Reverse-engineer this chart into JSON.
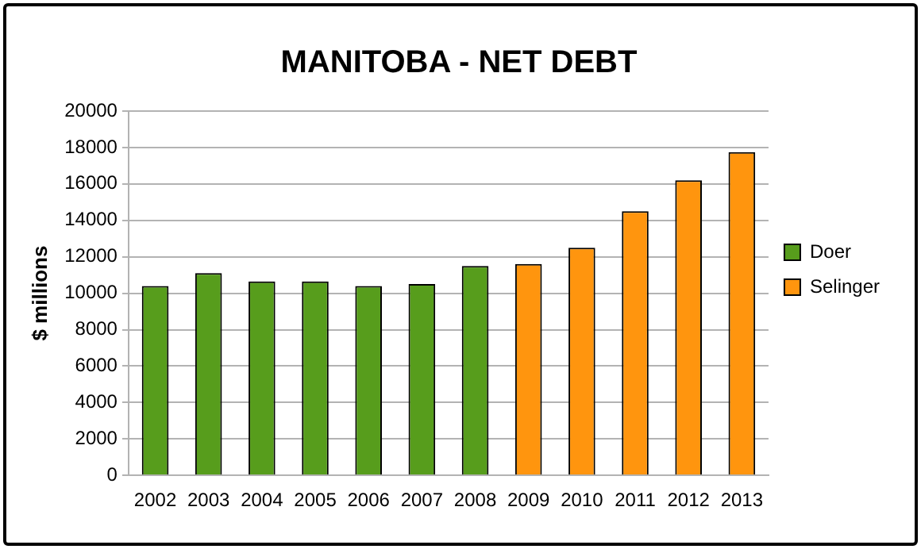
{
  "chart_data": {
    "type": "bar",
    "title": "MANITOBA - NET DEBT",
    "ylabel": "$ millions",
    "categories": [
      "2002",
      "2003",
      "2004",
      "2005",
      "2006",
      "2007",
      "2008",
      "2009",
      "2010",
      "2011",
      "2012",
      "2013"
    ],
    "series": [
      {
        "name": "Doer",
        "color": "#579d1c",
        "values": [
          10400,
          11100,
          10650,
          10650,
          10400,
          10500,
          11500,
          null,
          null,
          null,
          null,
          null
        ]
      },
      {
        "name": "Selinger",
        "color": "#ff950e",
        "values": [
          null,
          null,
          null,
          null,
          null,
          null,
          null,
          11600,
          12500,
          14500,
          16200,
          17750
        ]
      }
    ],
    "ylim": [
      0,
      20000
    ],
    "yticks": [
      0,
      2000,
      4000,
      6000,
      8000,
      10000,
      12000,
      14000,
      16000,
      18000,
      20000
    ],
    "grid": "y",
    "legend": "right"
  }
}
